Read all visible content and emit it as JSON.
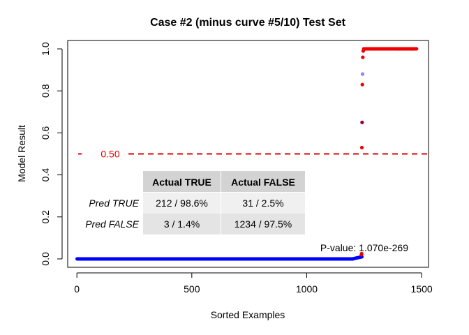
{
  "chart_data": {
    "type": "scatter",
    "title": "Case #2 (minus curve #5/10) Test Set",
    "xlabel": "Sorted Examples",
    "ylabel": "Model Result",
    "xlim": [
      -40,
      1530
    ],
    "ylim": [
      -0.04,
      1.04
    ],
    "xticks": [
      0,
      500,
      1000,
      1500
    ],
    "yticks": [
      0.0,
      0.2,
      0.4,
      0.6,
      0.8,
      1.0
    ],
    "xtick_labels": [
      "0",
      "500",
      "1000",
      "1500"
    ],
    "ytick_labels": [
      "0.0",
      "0.2",
      "0.4",
      "0.6",
      "0.8",
      "1.0"
    ],
    "grid": false,
    "threshold": {
      "value": 0.5,
      "label": "0.50",
      "color": "#e00000"
    },
    "pvalue_label": "P-value: 1.070e-269",
    "series": [
      {
        "color": "#0000ff",
        "segments": [
          {
            "x_start": 1,
            "x_end": 1200,
            "y": 0.0
          },
          {
            "x_start": 1200,
            "x_end": 1240,
            "y_start": 0.0,
            "y_end": 0.01
          }
        ],
        "points": [
          {
            "x": 1243,
            "y": 0.88,
            "color": "#8888ff"
          },
          {
            "x": 1400,
            "y": 1.0
          },
          {
            "x": 1455,
            "y": 1.0
          }
        ]
      },
      {
        "color": "#ee0000",
        "points": [
          {
            "x": 1238,
            "y": 0.02
          },
          {
            "x": 1239,
            "y": 0.025
          },
          {
            "x": 1240,
            "y": 0.53
          },
          {
            "x": 1241,
            "y": 0.65,
            "color": "#990033"
          },
          {
            "x": 1242,
            "y": 0.83
          },
          {
            "x": 1244,
            "y": 0.96
          },
          {
            "x": 1246,
            "y": 0.99
          }
        ],
        "segments": [
          {
            "x_start": 1248,
            "x_end": 1478,
            "y": 1.0
          }
        ]
      }
    ],
    "table": {
      "col_headers": [
        "Actual TRUE",
        "Actual FALSE"
      ],
      "rows": [
        {
          "label": "Pred TRUE",
          "values": [
            "212 / 98.6%",
            "31 / 2.5%"
          ]
        },
        {
          "label": "Pred FALSE",
          "values": [
            "3 / 1.4%",
            "1234 / 97.5%"
          ]
        }
      ]
    }
  }
}
